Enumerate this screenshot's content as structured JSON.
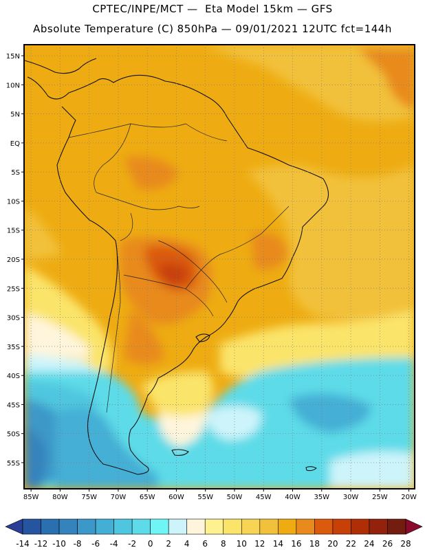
{
  "header": {
    "line1": "CPTEC/INPE/MCT —  Eta Model 15km — GFS",
    "line2": "Absolute Temperature (C) 850hPa — 09/01/2021 12UTC fct=144h"
  },
  "map": {
    "lat_labels": [
      "15N",
      "10N",
      "5N",
      "EQ",
      "5S",
      "10S",
      "15S",
      "20S",
      "25S",
      "30S",
      "35S",
      "40S",
      "45S",
      "50S",
      "55S"
    ],
    "lat_values": [
      15,
      10,
      5,
      0,
      -5,
      -10,
      -15,
      -20,
      -25,
      -30,
      -35,
      -40,
      -45,
      -50,
      -55
    ],
    "lon_labels": [
      "85W",
      "80W",
      "75W",
      "70W",
      "65W",
      "60W",
      "55W",
      "50W",
      "45W",
      "40W",
      "35W",
      "30W",
      "25W",
      "20W"
    ],
    "lon_values": [
      -85,
      -80,
      -75,
      -70,
      -65,
      -60,
      -55,
      -50,
      -45,
      -40,
      -35,
      -30,
      -25,
      -20
    ]
  },
  "colorbar": {
    "labels": [
      "-14",
      "-12",
      "-10",
      "-8",
      "-6",
      "-4",
      "-2",
      "0",
      "2",
      "4",
      "6",
      "8",
      "10",
      "12",
      "14",
      "16",
      "18",
      "20",
      "22",
      "24",
      "26",
      "28"
    ],
    "colors": [
      "#2b3f96",
      "#25559f",
      "#2a6faf",
      "#3483bd",
      "#3c98c8",
      "#44afd5",
      "#4fc6df",
      "#5ddbe8",
      "#6ff5f5",
      "#cdf4fb",
      "#fff5dc",
      "#fdf28f",
      "#fbe46a",
      "#f8d455",
      "#f2c13b",
      "#eeac12",
      "#e88a1c",
      "#db5a0c",
      "#c64007",
      "#ae2e06",
      "#92220b",
      "#731d10",
      "#8a0a2e"
    ]
  },
  "colors": {
    "warm_base": "#eeac12",
    "frame": "#000000",
    "grid": "#7a7a7a"
  }
}
